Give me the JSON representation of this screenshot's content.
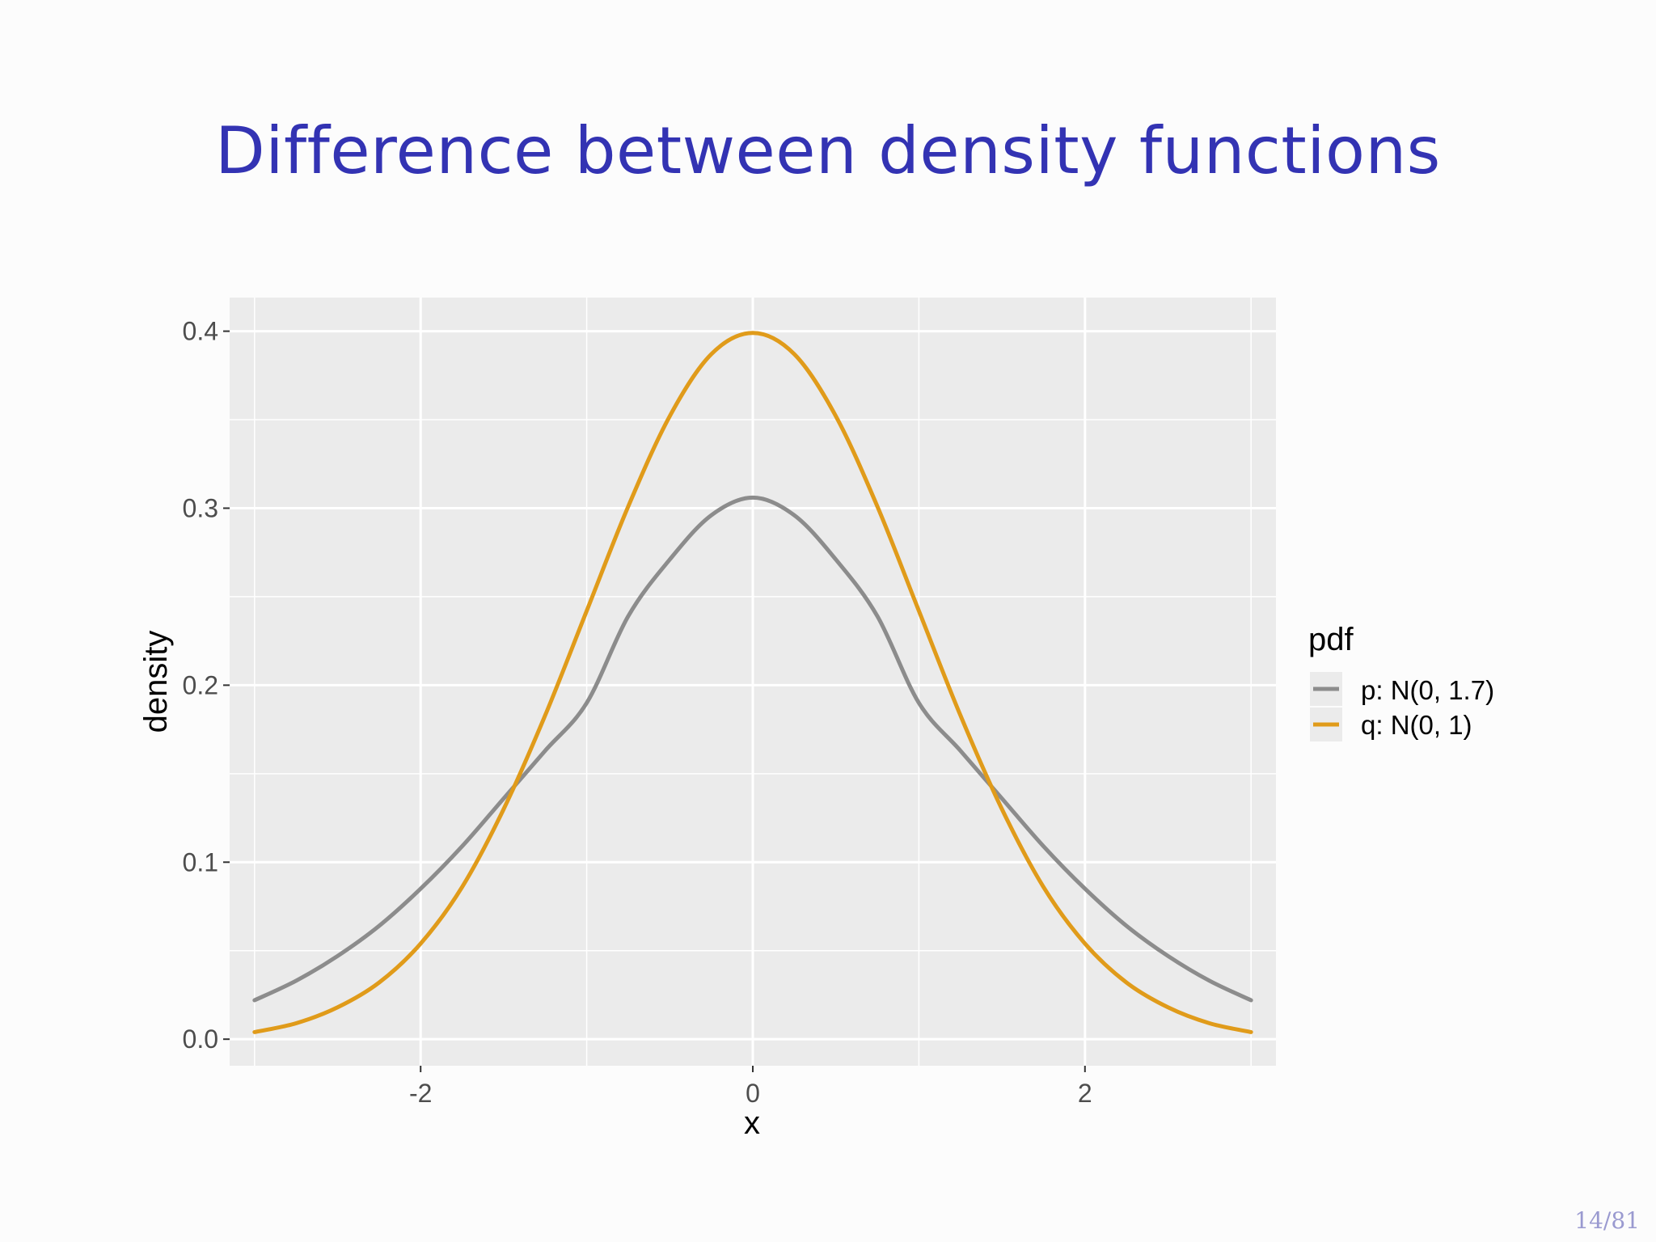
{
  "slide": {
    "title": "Difference between density functions",
    "page_number": "14/81"
  },
  "chart_data": {
    "type": "line",
    "title": "",
    "xlabel": "x",
    "ylabel": "density",
    "xlim": [
      -3.15,
      3.15
    ],
    "ylim": [
      -0.015,
      0.419
    ],
    "x_ticks": [
      -2,
      0,
      2
    ],
    "x_tick_labels": [
      "-2",
      "0",
      "2"
    ],
    "x_minor_ticks": [
      -3,
      -1,
      1,
      3
    ],
    "y_ticks": [
      0.0,
      0.1,
      0.2,
      0.3,
      0.4
    ],
    "y_tick_labels": [
      "0.0",
      "0.1",
      "0.2",
      "0.3",
      "0.4"
    ],
    "y_minor_ticks": [
      0.05,
      0.15,
      0.25,
      0.35
    ],
    "grid": true,
    "legend": {
      "title": "pdf",
      "placement": "right"
    },
    "x": [
      -3.0,
      -2.75,
      -2.5,
      -2.25,
      -2.0,
      -1.75,
      -1.5,
      -1.25,
      -1.0,
      -0.75,
      -0.5,
      -0.25,
      0.0,
      0.25,
      0.5,
      0.75,
      1.0,
      1.25,
      1.5,
      1.75,
      2.0,
      2.25,
      2.5,
      2.75,
      3.0
    ],
    "series": [
      {
        "name": "p: N(0, 1.7)",
        "color": "#8c8c8c",
        "values": [
          0.022,
          0.033,
          0.047,
          0.064,
          0.085,
          0.109,
          0.136,
          0.163,
          0.19,
          0.239,
          0.271,
          0.296,
          0.306,
          0.296,
          0.271,
          0.239,
          0.19,
          0.163,
          0.136,
          0.109,
          0.085,
          0.064,
          0.047,
          0.033,
          0.022
        ]
      },
      {
        "name": "q: N(0, 1)",
        "color": "#e09b1a",
        "values": [
          0.004,
          0.009,
          0.018,
          0.032,
          0.054,
          0.086,
          0.13,
          0.183,
          0.242,
          0.301,
          0.352,
          0.387,
          0.399,
          0.387,
          0.352,
          0.301,
          0.242,
          0.183,
          0.13,
          0.086,
          0.054,
          0.032,
          0.018,
          0.009,
          0.004
        ]
      }
    ]
  },
  "colors": {
    "title": "#3333b3",
    "panel_background": "#ebebeb",
    "grid": "#ffffff",
    "page_number": "#9a9ad0"
  }
}
